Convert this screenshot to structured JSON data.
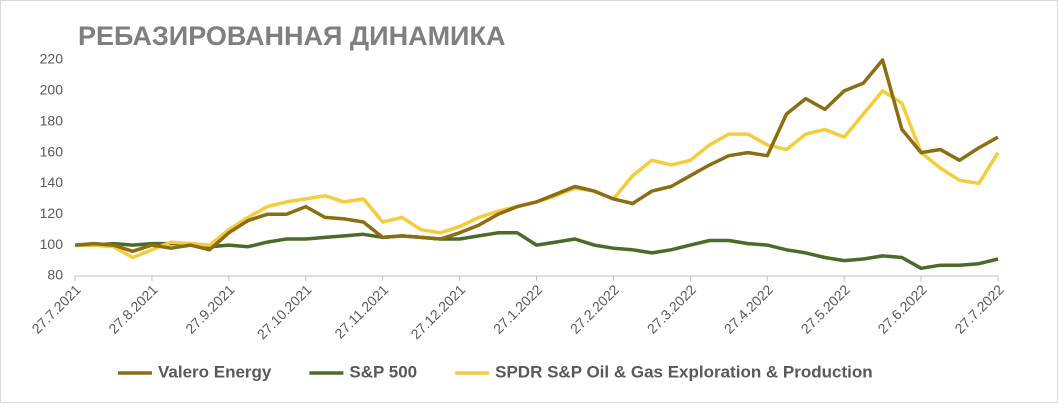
{
  "chart_data": {
    "type": "line",
    "title": "РЕБАЗИРОВАННАЯ ДИНАМИКА",
    "categories": [
      "27.7.2021",
      null,
      null,
      null,
      "27.8.2021",
      null,
      null,
      null,
      "27.9.2021",
      null,
      null,
      null,
      "27.10.2021",
      null,
      null,
      null,
      "27.11.2021",
      null,
      null,
      null,
      "27.12.2021",
      null,
      null,
      null,
      "27.1.2022",
      null,
      null,
      null,
      "27.2.2022",
      null,
      null,
      null,
      "27.3.2022",
      null,
      null,
      null,
      "27.4.2022",
      null,
      null,
      null,
      "27.5.2022",
      null,
      null,
      null,
      "27.6.2022",
      null,
      null,
      null,
      "27.7.2022"
    ],
    "series": [
      {
        "name": "Valero Energy",
        "color": "#8c6d12",
        "values": [
          100,
          101,
          100,
          96,
          100,
          98,
          100,
          97,
          108,
          116,
          120,
          120,
          125,
          118,
          117,
          115,
          105,
          106,
          105,
          104,
          108,
          113,
          120,
          125,
          128,
          133,
          138,
          135,
          130,
          127,
          135,
          138,
          145,
          152,
          158,
          160,
          158,
          185,
          195,
          188,
          200,
          205,
          220,
          175,
          160,
          162,
          155,
          163,
          170
        ]
      },
      {
        "name": "S&P 500",
        "color": "#4a6b2a",
        "values": [
          100,
          100,
          101,
          100,
          101,
          101,
          101,
          99,
          100,
          99,
          102,
          104,
          104,
          105,
          106,
          107,
          105,
          106,
          105,
          104,
          104,
          106,
          108,
          108,
          100,
          102,
          104,
          100,
          98,
          97,
          95,
          97,
          100,
          103,
          103,
          101,
          100,
          97,
          95,
          92,
          90,
          91,
          93,
          92,
          85,
          87,
          87,
          88,
          91
        ]
      },
      {
        "name": "SPDR S&P Oil & Gas Exploration & Production",
        "color": "#f5cd3b",
        "values": [
          100,
          100,
          99,
          92,
          97,
          102,
          101,
          100,
          110,
          118,
          125,
          128,
          130,
          132,
          128,
          130,
          115,
          118,
          110,
          108,
          112,
          118,
          122,
          125,
          128,
          132,
          137,
          135,
          130,
          145,
          155,
          152,
          155,
          165,
          172,
          172,
          165,
          162,
          172,
          175,
          170,
          185,
          200,
          192,
          160,
          150,
          142,
          140,
          160
        ]
      }
    ],
    "ylim": [
      80,
      220
    ],
    "yticks": [
      80,
      100,
      120,
      140,
      160,
      180,
      200,
      220
    ],
    "grid": false
  }
}
